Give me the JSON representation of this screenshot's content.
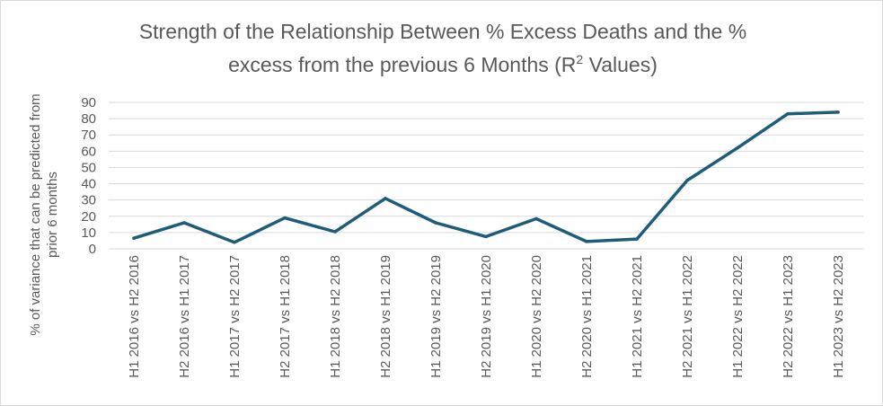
{
  "chart_data": {
    "type": "line",
    "title_line1": "Strength of the Relationship Between % Excess Deaths and the %",
    "title_line2_prefix": "excess from the previous 6 Months (R",
    "title_superscript": "2",
    "title_line2_suffix": " Values)",
    "ylabel_line1": "% of variance that can be predicted from",
    "ylabel_line2": "prior 6 months",
    "xlabel": "",
    "ylim": [
      0,
      90
    ],
    "yticks": [
      0,
      10,
      20,
      30,
      40,
      50,
      60,
      70,
      80,
      90
    ],
    "grid": true,
    "legend": "none",
    "categories": [
      "H1 2016 vs H2 2016",
      "H2 2016 vs H1 2017",
      "H1 2017 vs H2 2017",
      "H2 2017 vs H1 2018",
      "H1 2018 vs H2 2018",
      "H2 2018 vs H1 2019",
      "H1 2019 vs H2 2019",
      "H2 2019 vs H1 2020",
      "H1 2020 vs H2 2020",
      "H2 2020 vs H1 2021",
      "H1 2021 vs H2 2021",
      "H2 2021 vs H1 2022",
      "H1 2022 vs H2 2022",
      "H2 2022 vs H1 2023",
      "H1 2023 vs H2 2023"
    ],
    "series": [
      {
        "name": "R2 Values",
        "color": "#1f5c7a",
        "values": [
          6.5,
          16,
          4,
          19,
          10.5,
          31,
          16,
          7.5,
          18.5,
          4.5,
          6,
          42,
          62,
          83,
          84
        ]
      }
    ]
  }
}
